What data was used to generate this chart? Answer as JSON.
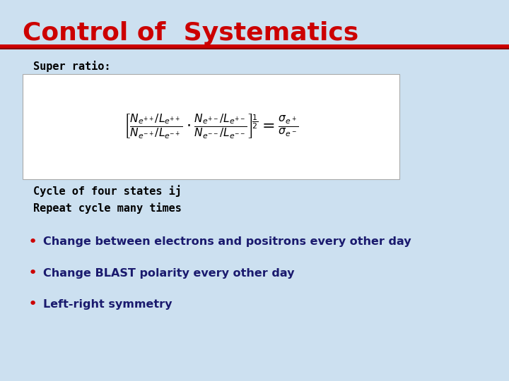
{
  "title": "Control of  Systematics",
  "title_color": "#cc0000",
  "title_fontsize": 26,
  "bg_color": "#cce0f0",
  "line_color": "#cc0000",
  "super_ratio_label": "Super ratio:",
  "cycle_text": "Cycle of four states ij\nRepeat cycle many times",
  "bullet_color": "#cc0000",
  "bullet_text_color": "#1a1a6e",
  "bullets": [
    "Change between electrons and positrons every other day",
    "Change BLAST polarity every other day",
    "Left-right symmetry"
  ],
  "formula_box_color": "#ffffff",
  "dark_navy": "#1a1a6e"
}
